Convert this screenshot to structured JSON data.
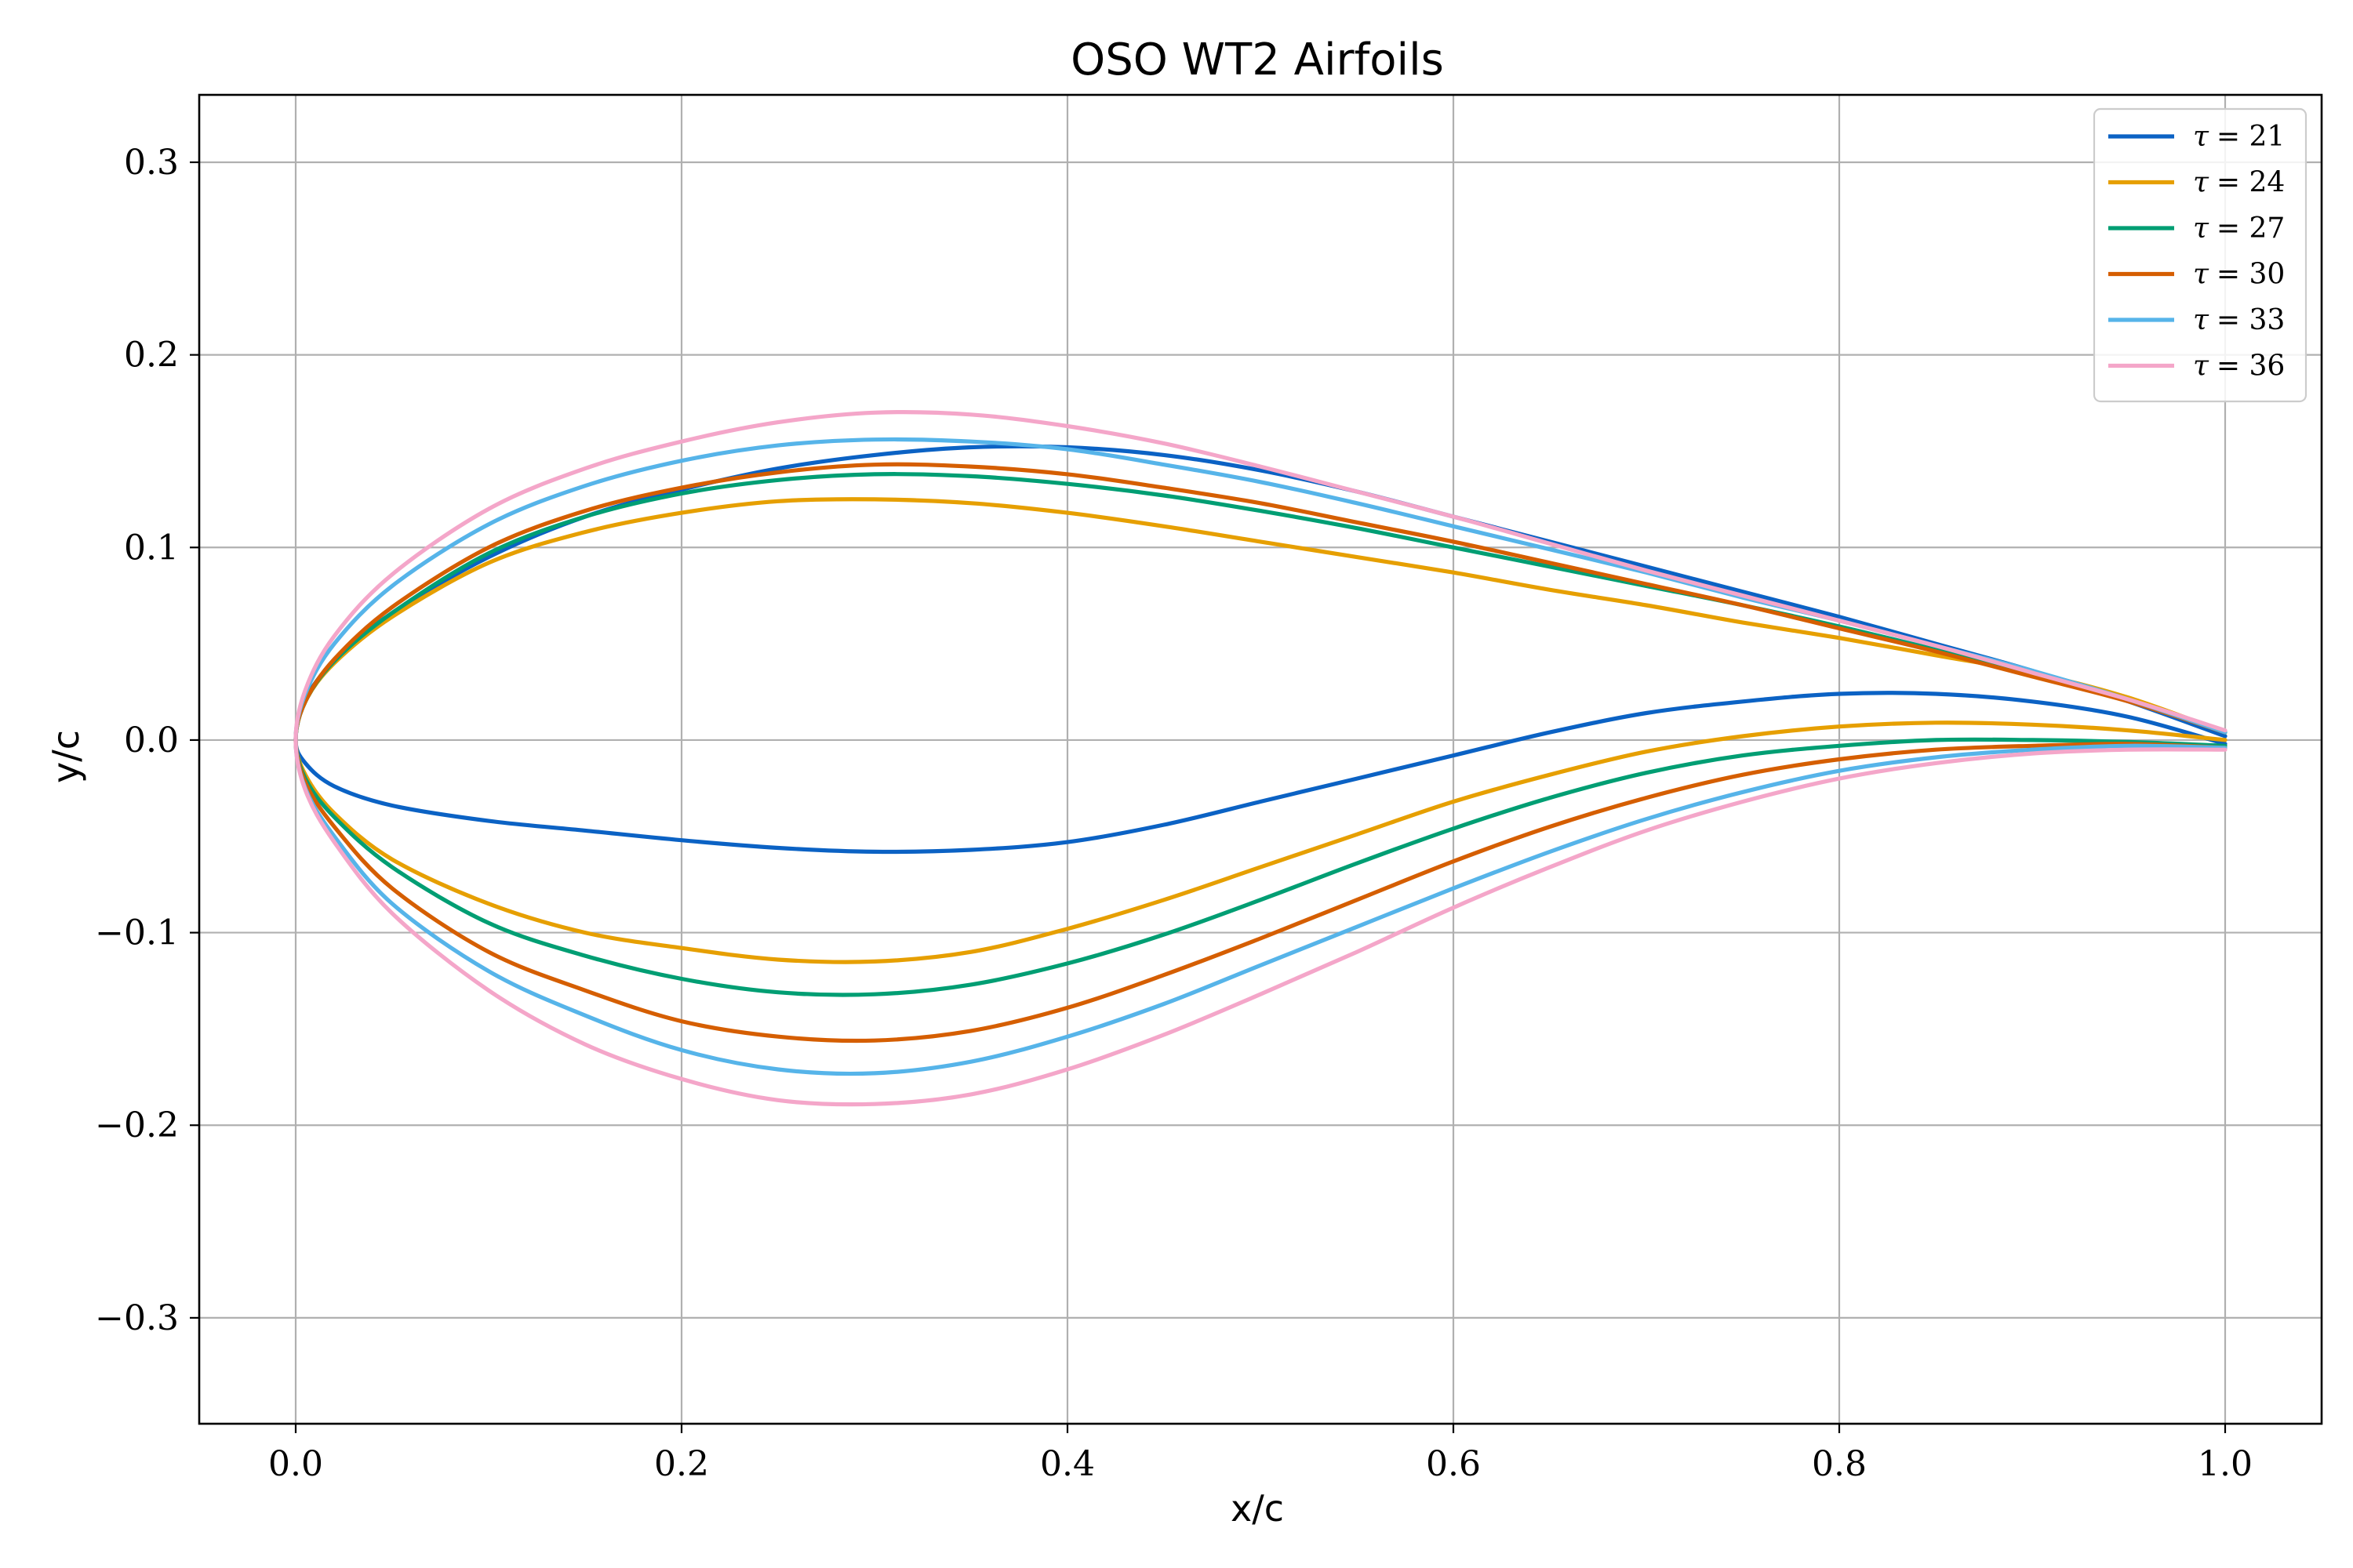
{
  "chart_data": {
    "type": "line",
    "title": "OSO WT2 Airfoils",
    "xlabel": "x/c",
    "ylabel": "y/c",
    "xlim": [
      -0.05,
      1.05
    ],
    "ylim": [
      -0.355,
      0.335
    ],
    "xticks": [
      0.0,
      0.2,
      0.4,
      0.6,
      0.8,
      1.0
    ],
    "xtick_labels": [
      "0.0",
      "0.2",
      "0.4",
      "0.6",
      "0.8",
      "1.0"
    ],
    "yticks": [
      -0.3,
      -0.2,
      -0.1,
      0.0,
      0.1,
      0.2,
      0.3
    ],
    "ytick_labels": [
      "−0.3",
      "−0.2",
      "−0.1",
      "0.0",
      "0.1",
      "0.2",
      "0.3"
    ],
    "grid": true,
    "legend_position": "top-right",
    "series": [
      {
        "name": "τ = 21",
        "legend_symbol": "τ",
        "legend_value": "= 21",
        "color": "#0b62c4",
        "upper": [
          [
            0,
            0
          ],
          [
            0.005,
            0.021
          ],
          [
            0.02,
            0.041
          ],
          [
            0.05,
            0.066
          ],
          [
            0.1,
            0.095
          ],
          [
            0.15,
            0.116
          ],
          [
            0.2,
            0.13
          ],
          [
            0.25,
            0.141
          ],
          [
            0.3,
            0.148
          ],
          [
            0.35,
            0.152
          ],
          [
            0.4,
            0.152
          ],
          [
            0.45,
            0.148
          ],
          [
            0.5,
            0.14
          ],
          [
            0.55,
            0.129
          ],
          [
            0.6,
            0.116
          ],
          [
            0.65,
            0.103
          ],
          [
            0.7,
            0.09
          ],
          [
            0.75,
            0.077
          ],
          [
            0.8,
            0.064
          ],
          [
            0.85,
            0.05
          ],
          [
            0.9,
            0.036
          ],
          [
            0.95,
            0.02
          ],
          [
            1.0,
            0.002
          ]
        ],
        "lower": [
          [
            0,
            0
          ],
          [
            0.005,
            -0.012
          ],
          [
            0.02,
            -0.024
          ],
          [
            0.05,
            -0.034
          ],
          [
            0.1,
            -0.042
          ],
          [
            0.15,
            -0.047
          ],
          [
            0.2,
            -0.052
          ],
          [
            0.25,
            -0.056
          ],
          [
            0.3,
            -0.058
          ],
          [
            0.35,
            -0.057
          ],
          [
            0.4,
            -0.053
          ],
          [
            0.45,
            -0.044
          ],
          [
            0.5,
            -0.032
          ],
          [
            0.55,
            -0.02
          ],
          [
            0.6,
            -0.008
          ],
          [
            0.65,
            0.004
          ],
          [
            0.7,
            0.014
          ],
          [
            0.75,
            0.02
          ],
          [
            0.8,
            0.024
          ],
          [
            0.85,
            0.024
          ],
          [
            0.9,
            0.02
          ],
          [
            0.95,
            0.012
          ],
          [
            1.0,
            -0.002
          ]
        ]
      },
      {
        "name": "τ = 24",
        "legend_symbol": "τ",
        "legend_value": "= 24",
        "color": "#e69f00",
        "upper": [
          [
            0,
            0
          ],
          [
            0.005,
            0.02
          ],
          [
            0.02,
            0.04
          ],
          [
            0.05,
            0.064
          ],
          [
            0.1,
            0.092
          ],
          [
            0.15,
            0.108
          ],
          [
            0.2,
            0.118
          ],
          [
            0.25,
            0.124
          ],
          [
            0.3,
            0.125
          ],
          [
            0.35,
            0.123
          ],
          [
            0.4,
            0.118
          ],
          [
            0.45,
            0.111
          ],
          [
            0.5,
            0.103
          ],
          [
            0.55,
            0.095
          ],
          [
            0.6,
            0.087
          ],
          [
            0.65,
            0.078
          ],
          [
            0.7,
            0.07
          ],
          [
            0.75,
            0.061
          ],
          [
            0.8,
            0.053
          ],
          [
            0.85,
            0.044
          ],
          [
            0.9,
            0.035
          ],
          [
            0.95,
            0.022
          ],
          [
            1.0,
            0.004
          ]
        ],
        "lower": [
          [
            0,
            0
          ],
          [
            0.005,
            -0.018
          ],
          [
            0.02,
            -0.038
          ],
          [
            0.05,
            -0.062
          ],
          [
            0.1,
            -0.085
          ],
          [
            0.15,
            -0.1
          ],
          [
            0.2,
            -0.108
          ],
          [
            0.25,
            -0.114
          ],
          [
            0.3,
            -0.115
          ],
          [
            0.35,
            -0.11
          ],
          [
            0.4,
            -0.098
          ],
          [
            0.45,
            -0.083
          ],
          [
            0.5,
            -0.066
          ],
          [
            0.55,
            -0.049
          ],
          [
            0.6,
            -0.032
          ],
          [
            0.65,
            -0.018
          ],
          [
            0.7,
            -0.006
          ],
          [
            0.75,
            0.002
          ],
          [
            0.8,
            0.007
          ],
          [
            0.85,
            0.009
          ],
          [
            0.9,
            0.008
          ],
          [
            0.95,
            0.005
          ],
          [
            1.0,
            0.0
          ]
        ]
      },
      {
        "name": "τ = 27",
        "legend_symbol": "τ",
        "legend_value": "= 27",
        "color": "#009e73",
        "upper": [
          [
            0,
            0
          ],
          [
            0.005,
            0.02
          ],
          [
            0.02,
            0.041
          ],
          [
            0.05,
            0.066
          ],
          [
            0.1,
            0.097
          ],
          [
            0.15,
            0.116
          ],
          [
            0.2,
            0.128
          ],
          [
            0.25,
            0.135
          ],
          [
            0.3,
            0.138
          ],
          [
            0.35,
            0.137
          ],
          [
            0.4,
            0.133
          ],
          [
            0.45,
            0.127
          ],
          [
            0.5,
            0.119
          ],
          [
            0.55,
            0.11
          ],
          [
            0.6,
            0.1
          ],
          [
            0.65,
            0.09
          ],
          [
            0.7,
            0.08
          ],
          [
            0.75,
            0.07
          ],
          [
            0.8,
            0.059
          ],
          [
            0.85,
            0.047
          ],
          [
            0.9,
            0.035
          ],
          [
            0.95,
            0.021
          ],
          [
            1.0,
            0.004
          ]
        ],
        "lower": [
          [
            0,
            0
          ],
          [
            0.005,
            -0.02
          ],
          [
            0.02,
            -0.04
          ],
          [
            0.05,
            -0.066
          ],
          [
            0.1,
            -0.095
          ],
          [
            0.15,
            -0.112
          ],
          [
            0.2,
            -0.124
          ],
          [
            0.25,
            -0.131
          ],
          [
            0.3,
            -0.132
          ],
          [
            0.35,
            -0.127
          ],
          [
            0.4,
            -0.116
          ],
          [
            0.45,
            -0.101
          ],
          [
            0.5,
            -0.083
          ],
          [
            0.55,
            -0.064
          ],
          [
            0.6,
            -0.046
          ],
          [
            0.65,
            -0.03
          ],
          [
            0.7,
            -0.017
          ],
          [
            0.75,
            -0.008
          ],
          [
            0.8,
            -0.003
          ],
          [
            0.85,
            0.0
          ],
          [
            0.9,
            0.0
          ],
          [
            0.95,
            -0.001
          ],
          [
            1.0,
            -0.003
          ]
        ]
      },
      {
        "name": "τ = 30",
        "legend_symbol": "τ",
        "legend_value": "= 30",
        "color": "#d55e00",
        "upper": [
          [
            0,
            0
          ],
          [
            0.005,
            0.02
          ],
          [
            0.02,
            0.042
          ],
          [
            0.05,
            0.069
          ],
          [
            0.1,
            0.1
          ],
          [
            0.15,
            0.119
          ],
          [
            0.2,
            0.131
          ],
          [
            0.25,
            0.139
          ],
          [
            0.3,
            0.143
          ],
          [
            0.35,
            0.142
          ],
          [
            0.4,
            0.138
          ],
          [
            0.45,
            0.131
          ],
          [
            0.5,
            0.123
          ],
          [
            0.55,
            0.113
          ],
          [
            0.6,
            0.103
          ],
          [
            0.65,
            0.092
          ],
          [
            0.7,
            0.081
          ],
          [
            0.75,
            0.07
          ],
          [
            0.8,
            0.058
          ],
          [
            0.85,
            0.046
          ],
          [
            0.9,
            0.033
          ],
          [
            0.95,
            0.02
          ],
          [
            1.0,
            0.004
          ]
        ],
        "lower": [
          [
            0,
            0
          ],
          [
            0.005,
            -0.022
          ],
          [
            0.02,
            -0.045
          ],
          [
            0.05,
            -0.077
          ],
          [
            0.1,
            -0.11
          ],
          [
            0.15,
            -0.13
          ],
          [
            0.2,
            -0.146
          ],
          [
            0.25,
            -0.154
          ],
          [
            0.3,
            -0.156
          ],
          [
            0.35,
            -0.151
          ],
          [
            0.4,
            -0.139
          ],
          [
            0.45,
            -0.122
          ],
          [
            0.5,
            -0.103
          ],
          [
            0.55,
            -0.083
          ],
          [
            0.6,
            -0.063
          ],
          [
            0.65,
            -0.045
          ],
          [
            0.7,
            -0.03
          ],
          [
            0.75,
            -0.018
          ],
          [
            0.8,
            -0.01
          ],
          [
            0.85,
            -0.005
          ],
          [
            0.9,
            -0.003
          ],
          [
            0.95,
            -0.002
          ],
          [
            1.0,
            -0.004
          ]
        ]
      },
      {
        "name": "τ = 33",
        "legend_symbol": "τ",
        "legend_value": "= 33",
        "color": "#56b4e9",
        "upper": [
          [
            0,
            0
          ],
          [
            0.005,
            0.024
          ],
          [
            0.02,
            0.05
          ],
          [
            0.05,
            0.08
          ],
          [
            0.1,
            0.112
          ],
          [
            0.15,
            0.132
          ],
          [
            0.2,
            0.145
          ],
          [
            0.25,
            0.153
          ],
          [
            0.3,
            0.156
          ],
          [
            0.35,
            0.155
          ],
          [
            0.4,
            0.151
          ],
          [
            0.45,
            0.143
          ],
          [
            0.5,
            0.134
          ],
          [
            0.55,
            0.123
          ],
          [
            0.6,
            0.111
          ],
          [
            0.65,
            0.099
          ],
          [
            0.7,
            0.087
          ],
          [
            0.75,
            0.074
          ],
          [
            0.8,
            0.062
          ],
          [
            0.85,
            0.049
          ],
          [
            0.9,
            0.036
          ],
          [
            0.95,
            0.021
          ],
          [
            1.0,
            0.004
          ]
        ],
        "lower": [
          [
            0,
            0
          ],
          [
            0.005,
            -0.025
          ],
          [
            0.02,
            -0.05
          ],
          [
            0.05,
            -0.085
          ],
          [
            0.1,
            -0.12
          ],
          [
            0.15,
            -0.143
          ],
          [
            0.2,
            -0.161
          ],
          [
            0.25,
            -0.171
          ],
          [
            0.3,
            -0.173
          ],
          [
            0.35,
            -0.167
          ],
          [
            0.4,
            -0.154
          ],
          [
            0.45,
            -0.137
          ],
          [
            0.5,
            -0.117
          ],
          [
            0.55,
            -0.097
          ],
          [
            0.6,
            -0.077
          ],
          [
            0.65,
            -0.058
          ],
          [
            0.7,
            -0.041
          ],
          [
            0.75,
            -0.027
          ],
          [
            0.8,
            -0.016
          ],
          [
            0.85,
            -0.009
          ],
          [
            0.9,
            -0.005
          ],
          [
            0.95,
            -0.003
          ],
          [
            1.0,
            -0.004
          ]
        ]
      },
      {
        "name": "τ = 36",
        "legend_symbol": "τ",
        "legend_value": "= 36",
        "color": "#f4a6c9",
        "upper": [
          [
            0,
            0
          ],
          [
            0.005,
            0.026
          ],
          [
            0.02,
            0.054
          ],
          [
            0.05,
            0.086
          ],
          [
            0.1,
            0.12
          ],
          [
            0.15,
            0.141
          ],
          [
            0.2,
            0.155
          ],
          [
            0.25,
            0.165
          ],
          [
            0.3,
            0.17
          ],
          [
            0.35,
            0.169
          ],
          [
            0.4,
            0.163
          ],
          [
            0.45,
            0.154
          ],
          [
            0.5,
            0.142
          ],
          [
            0.55,
            0.129
          ],
          [
            0.6,
            0.116
          ],
          [
            0.65,
            0.102
          ],
          [
            0.7,
            0.088
          ],
          [
            0.75,
            0.075
          ],
          [
            0.8,
            0.062
          ],
          [
            0.85,
            0.049
          ],
          [
            0.9,
            0.035
          ],
          [
            0.95,
            0.021
          ],
          [
            1.0,
            0.005
          ]
        ],
        "lower": [
          [
            0,
            0
          ],
          [
            0.005,
            -0.026
          ],
          [
            0.02,
            -0.053
          ],
          [
            0.05,
            -0.09
          ],
          [
            0.1,
            -0.13
          ],
          [
            0.15,
            -0.158
          ],
          [
            0.2,
            -0.176
          ],
          [
            0.25,
            -0.187
          ],
          [
            0.3,
            -0.189
          ],
          [
            0.35,
            -0.184
          ],
          [
            0.4,
            -0.171
          ],
          [
            0.45,
            -0.153
          ],
          [
            0.5,
            -0.132
          ],
          [
            0.55,
            -0.11
          ],
          [
            0.6,
            -0.087
          ],
          [
            0.65,
            -0.066
          ],
          [
            0.7,
            -0.047
          ],
          [
            0.75,
            -0.032
          ],
          [
            0.8,
            -0.02
          ],
          [
            0.85,
            -0.012
          ],
          [
            0.9,
            -0.007
          ],
          [
            0.95,
            -0.005
          ],
          [
            1.0,
            -0.005
          ]
        ]
      }
    ]
  }
}
